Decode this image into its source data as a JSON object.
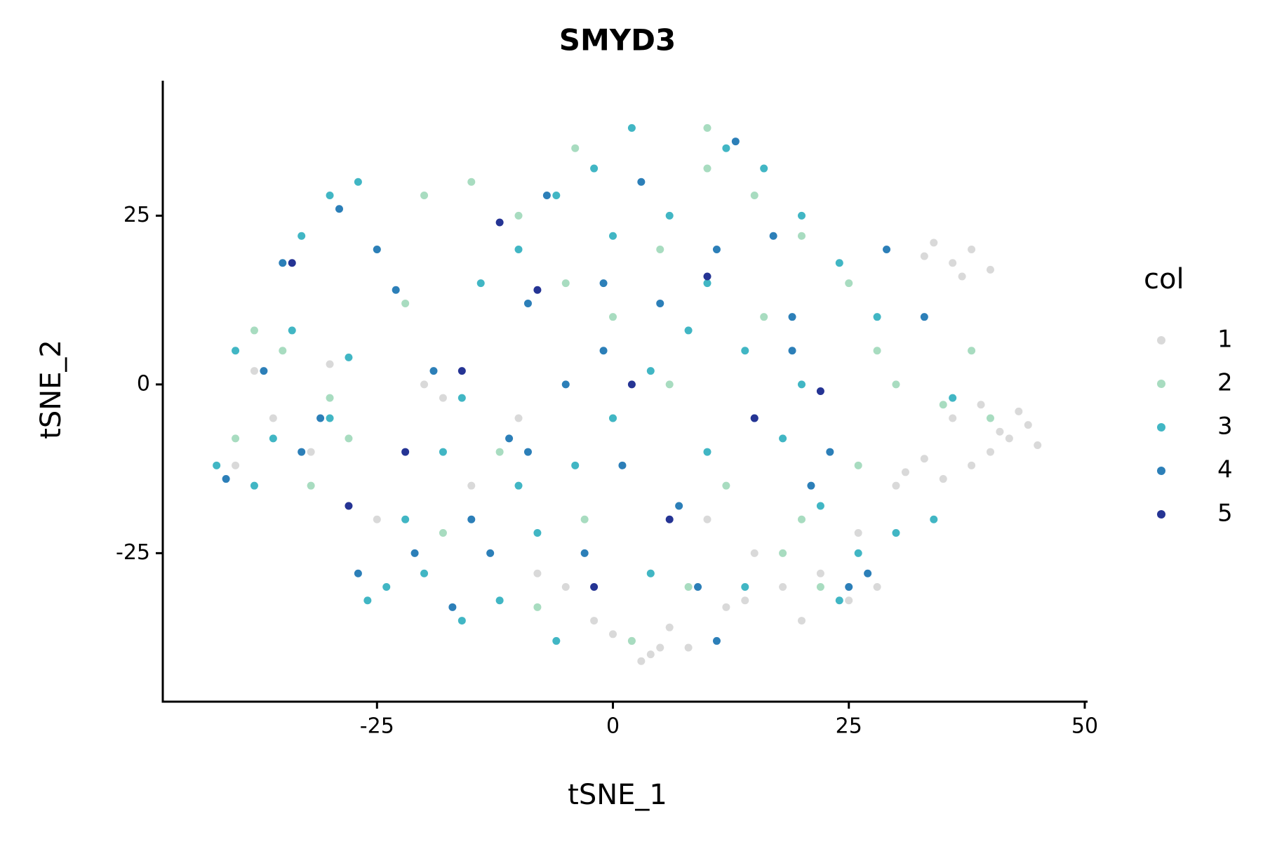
{
  "chart_data": {
    "type": "scatter",
    "title": "SMYD3",
    "x_label": "tSNE_1",
    "y_label": "tSNE_2",
    "legend_title": "col",
    "legend_position": "right",
    "grid": false,
    "xlim": [
      -47.7,
      50.3
    ],
    "ylim": [
      -47,
      45
    ],
    "xticks": [
      -25,
      0,
      25,
      50
    ],
    "yticks": [
      -25,
      0,
      25
    ],
    "series": [
      {
        "name": "1",
        "color": "#d9d9d9",
        "x": [
          36,
          38,
          34,
          40,
          37,
          33,
          42,
          44,
          45,
          40,
          38,
          35,
          33,
          31,
          36,
          43,
          39,
          41,
          2,
          4,
          6,
          0,
          3,
          -2,
          5,
          8,
          -18,
          -10,
          -5,
          12,
          18,
          22,
          15,
          -25,
          -32,
          -40,
          -38,
          -20,
          -15,
          10,
          25,
          28,
          20,
          -28,
          -30,
          -36,
          30,
          26,
          14,
          -8
        ],
        "y": [
          18,
          20,
          21,
          17,
          16,
          19,
          -8,
          -6,
          -9,
          -10,
          -12,
          -14,
          -11,
          -13,
          -5,
          -4,
          -3,
          -7,
          -38,
          -40,
          -36,
          -37,
          -41,
          -35,
          -39,
          -39,
          -2,
          -5,
          -30,
          -33,
          -30,
          -28,
          -25,
          -20,
          -10,
          -12,
          2,
          0,
          -15,
          -20,
          -32,
          -30,
          -35,
          -18,
          3,
          -5,
          -15,
          -22,
          -32,
          -28
        ]
      },
      {
        "name": "2",
        "color": "#a8dcc0",
        "x": [
          -38,
          -35,
          -30,
          -25,
          -20,
          -15,
          -10,
          -5,
          0,
          5,
          10,
          15,
          20,
          25,
          28,
          -12,
          -3,
          8,
          18,
          30,
          35,
          40,
          22,
          12,
          2,
          -8,
          -18,
          -28,
          -40,
          16,
          6,
          -4,
          26,
          38,
          10,
          0,
          -22,
          -32,
          20,
          4
        ],
        "y": [
          8,
          5,
          -2,
          20,
          28,
          30,
          25,
          15,
          10,
          20,
          32,
          28,
          22,
          15,
          5,
          -10,
          -20,
          -30,
          -25,
          0,
          -3,
          -5,
          -30,
          -15,
          -38,
          -33,
          -22,
          -8,
          -8,
          10,
          0,
          35,
          -12,
          5,
          38,
          -5,
          12,
          -15,
          -20,
          -28
        ]
      },
      {
        "name": "3",
        "color": "#41b6c4",
        "x": [
          -42,
          -40,
          -36,
          -33,
          -30,
          -27,
          -24,
          -20,
          -16,
          -12,
          -8,
          -4,
          0,
          4,
          8,
          12,
          16,
          20,
          24,
          28,
          -38,
          -34,
          -28,
          -22,
          -18,
          -14,
          -10,
          -6,
          -2,
          2,
          6,
          10,
          14,
          18,
          22,
          26,
          30,
          34,
          -26,
          -16,
          -6,
          4,
          14,
          24,
          -30,
          -10,
          0,
          10,
          20,
          36
        ],
        "y": [
          -12,
          5,
          -8,
          22,
          28,
          30,
          -30,
          -28,
          -35,
          -32,
          -22,
          -12,
          -5,
          2,
          8,
          35,
          32,
          25,
          18,
          10,
          -15,
          8,
          4,
          -20,
          -10,
          15,
          20,
          28,
          32,
          38,
          25,
          15,
          5,
          -8,
          -18,
          -25,
          -22,
          -20,
          -32,
          -2,
          -38,
          -28,
          -30,
          -32,
          -5,
          -15,
          22,
          -10,
          0,
          -2
        ]
      },
      {
        "name": "4",
        "color": "#2c7fb8",
        "x": [
          -41,
          -37,
          -33,
          -29,
          -25,
          -21,
          -17,
          -13,
          -9,
          -5,
          -1,
          3,
          7,
          11,
          15,
          19,
          23,
          27,
          -35,
          -23,
          -19,
          -11,
          -3,
          5,
          13,
          21,
          29,
          -15,
          -7,
          1,
          9,
          17,
          25,
          -27,
          -31,
          11,
          -1,
          -9,
          19,
          33
        ],
        "y": [
          -14,
          2,
          -10,
          26,
          20,
          -25,
          -33,
          -25,
          12,
          0,
          5,
          30,
          -18,
          20,
          -5,
          10,
          -10,
          -28,
          18,
          14,
          2,
          -8,
          -25,
          12,
          36,
          -15,
          20,
          -20,
          28,
          -12,
          -30,
          22,
          -30,
          -28,
          -5,
          -38,
          15,
          -10,
          5,
          10
        ]
      },
      {
        "name": "5",
        "color": "#253494",
        "x": [
          -34,
          -16,
          -28,
          -8,
          2,
          22,
          -2,
          15,
          10,
          -22,
          6,
          -12
        ],
        "y": [
          18,
          2,
          -18,
          14,
          0,
          -1,
          -30,
          -5,
          16,
          -10,
          -20,
          24
        ]
      }
    ]
  }
}
